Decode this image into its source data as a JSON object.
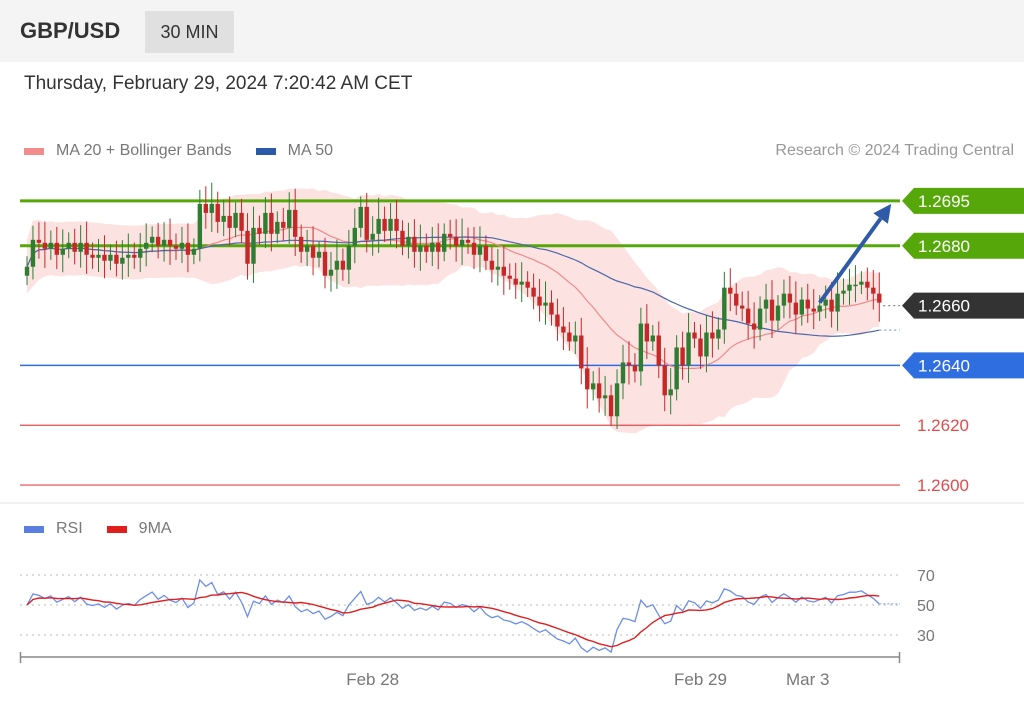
{
  "header": {
    "symbol": "GBP/USD",
    "timeframe": "30 MIN",
    "datetime": "Thursday, February 29, 2024 7:20:42 AM CET",
    "credit": "Research © 2024 Trading Central"
  },
  "legend": [
    {
      "label": "MA 20 + Bollinger Bands",
      "color": "#f28b8b"
    },
    {
      "label": "MA 50",
      "color": "#2b5aa6"
    }
  ],
  "rsi_legend": [
    {
      "label": "RSI",
      "color": "#5b7fe0"
    },
    {
      "label": "9MA",
      "color": "#e01e1e"
    }
  ],
  "colors": {
    "bull": "#2e7d32",
    "bear": "#c62828",
    "resistance": "#56a80a",
    "support": "#2f6ee0",
    "lower_support": "#e34b4b",
    "current": "#333333",
    "band_fill": "#fde2e2",
    "arrow": "#2e5aa8"
  },
  "chart_data": [
    {
      "type": "candlestick",
      "title": "",
      "ylim": [
        1.2595,
        1.2702
      ],
      "x_ticks": [
        {
          "label": "Feb 28",
          "index": 58
        },
        {
          "label": "Feb 29",
          "index": 113
        },
        {
          "label": "Mar 3",
          "index": 131
        }
      ],
      "price_levels": [
        {
          "label": "1.2695",
          "value": 1.2695,
          "role": "resistance",
          "tag": true
        },
        {
          "label": "1.2680",
          "value": 1.268,
          "role": "resistance",
          "tag": true
        },
        {
          "label": "1.2660",
          "value": 1.266,
          "role": "current",
          "tag": true
        },
        {
          "label": "1.2640",
          "value": 1.264,
          "role": "support",
          "tag": true
        },
        {
          "label": "1.2620",
          "value": 1.262,
          "role": "lower_support",
          "tag": false
        },
        {
          "label": "1.2600",
          "value": 1.26,
          "role": "lower_support",
          "tag": false
        }
      ],
      "forecast_arrow": {
        "from_index": 133,
        "from_value": 1.2661,
        "to_index": 145,
        "to_value": 1.2694
      },
      "close": [
        1.2673,
        1.2682,
        1.2681,
        1.2679,
        1.2681,
        1.2677,
        1.2679,
        1.2681,
        1.2678,
        1.2681,
        1.2677,
        1.2676,
        1.2677,
        1.2675,
        1.2677,
        1.2674,
        1.2676,
        1.2677,
        1.2676,
        1.2679,
        1.2681,
        1.2683,
        1.268,
        1.2682,
        1.268,
        1.2679,
        1.2681,
        1.2677,
        1.2679,
        1.2694,
        1.2691,
        1.2694,
        1.2688,
        1.269,
        1.2686,
        1.2691,
        1.2685,
        1.2674,
        1.2686,
        1.2684,
        1.2691,
        1.2684,
        1.2688,
        1.2686,
        1.2692,
        1.2683,
        1.2678,
        1.268,
        1.2676,
        1.2678,
        1.267,
        1.2672,
        1.2675,
        1.2672,
        1.268,
        1.2686,
        1.2693,
        1.2682,
        1.2684,
        1.2689,
        1.2685,
        1.2689,
        1.2685,
        1.268,
        1.2683,
        1.2678,
        1.268,
        1.2678,
        1.2681,
        1.2678,
        1.2684,
        1.2683,
        1.268,
        1.2682,
        1.2681,
        1.2677,
        1.268,
        1.2675,
        1.2672,
        1.2673,
        1.267,
        1.2669,
        1.2667,
        1.2668,
        1.2666,
        1.2663,
        1.266,
        1.2661,
        1.2657,
        1.2653,
        1.2651,
        1.2648,
        1.265,
        1.2639,
        1.2632,
        1.2634,
        1.2629,
        1.263,
        1.2623,
        1.2634,
        1.2641,
        1.264,
        1.2638,
        1.2654,
        1.2648,
        1.265,
        1.264,
        1.263,
        1.2632,
        1.2646,
        1.264,
        1.2651,
        1.2649,
        1.2643,
        1.2651,
        1.2649,
        1.2652,
        1.2666,
        1.2664,
        1.266,
        1.2659,
        1.2654,
        1.2652,
        1.2659,
        1.2662,
        1.2655,
        1.266,
        1.2664,
        1.2661,
        1.2657,
        1.2662,
        1.2659,
        1.2658,
        1.266,
        1.2662,
        1.2658,
        1.2664,
        1.2665,
        1.2667,
        1.2667,
        1.2668,
        1.2666,
        1.2664,
        1.2661
      ],
      "rsi": {
        "ylim": [
          20,
          80
        ],
        "levels": [
          70,
          50,
          30
        ],
        "level_labels": [
          "70",
          "50",
          "30"
        ]
      }
    }
  ]
}
